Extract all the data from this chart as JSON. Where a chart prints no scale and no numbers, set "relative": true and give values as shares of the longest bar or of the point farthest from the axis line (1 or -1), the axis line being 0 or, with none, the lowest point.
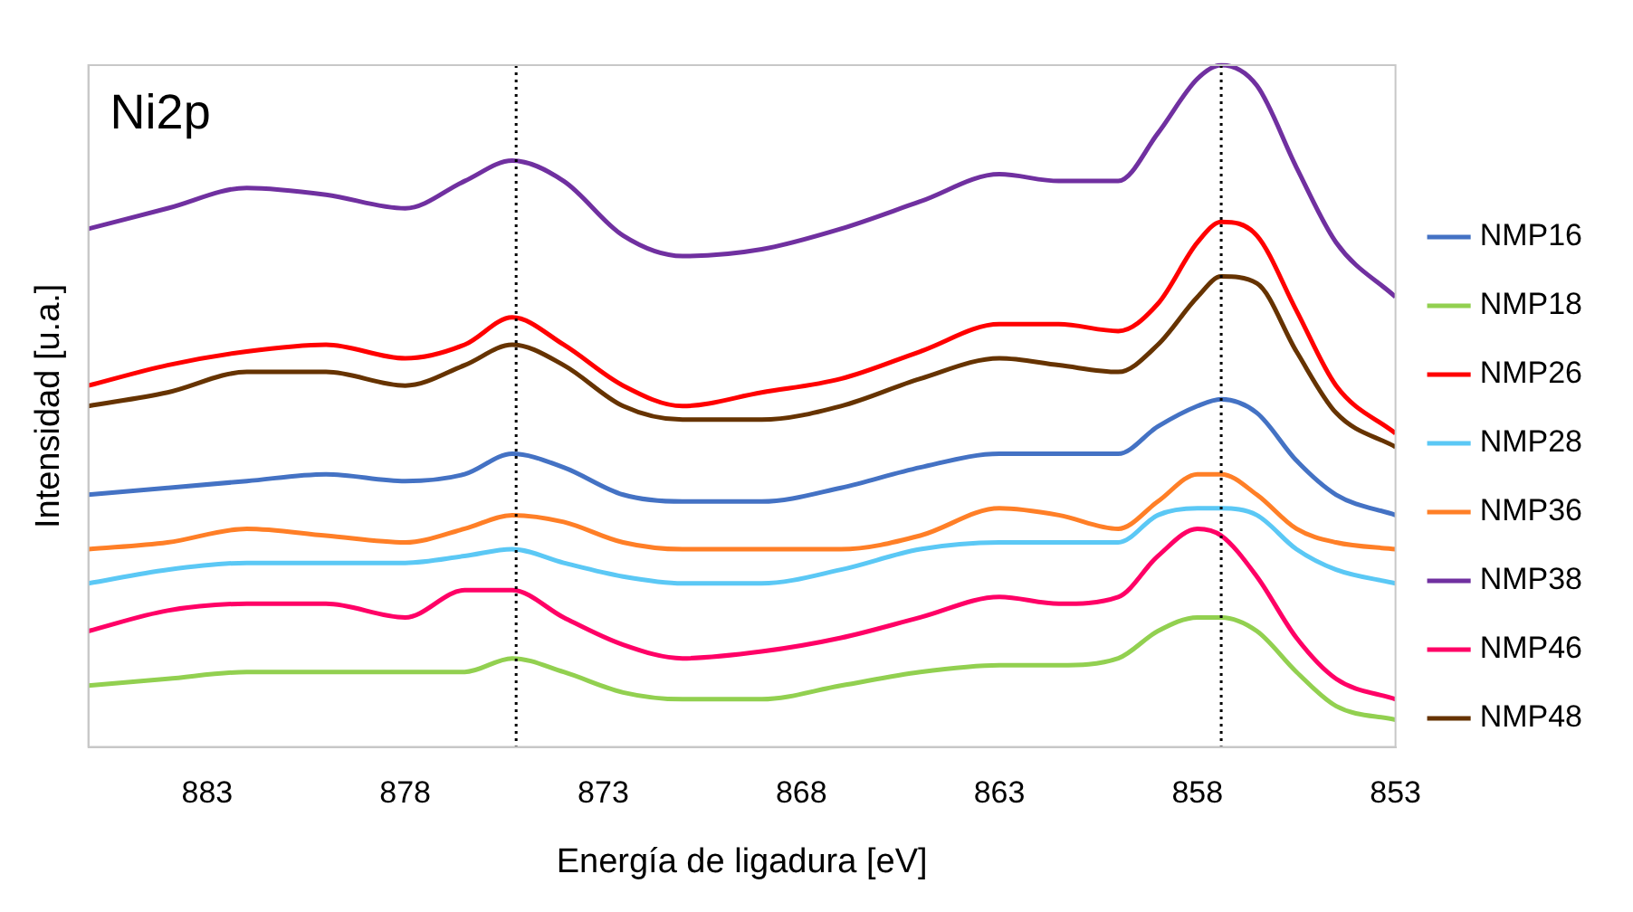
{
  "chart_data": {
    "type": "line",
    "relative": true,
    "xlabel": "Energía de ligadura [eV]",
    "ylabel": "Intensidad [u.a.]",
    "annotations": [
      "Ni2p"
    ],
    "x": [
      886,
      884,
      882,
      880,
      878,
      876.5,
      875.3,
      874,
      872.5,
      871,
      869,
      867,
      865,
      863,
      861.5,
      860,
      859,
      858,
      857.4,
      856.5,
      855.5,
      854.5,
      853
    ],
    "xlim": [
      886,
      853
    ],
    "xticks": [
      883,
      878,
      873,
      868,
      863,
      858,
      853
    ],
    "grid": false,
    "legend": "right",
    "marker": "none",
    "line_style": "solid",
    "ref_lines": [
      {
        "axis": "x",
        "value": 875.2,
        "color": "#000000",
        "line_style": "dotted"
      },
      {
        "axis": "x",
        "value": 857.4,
        "color": "#000000",
        "line_style": "dotted"
      }
    ],
    "series": [
      {
        "name": "NMP16",
        "color": "#4472c4",
        "values": [
          0.37,
          0.38,
          0.39,
          0.4,
          0.39,
          0.4,
          0.43,
          0.41,
          0.37,
          0.36,
          0.36,
          0.38,
          0.41,
          0.43,
          0.43,
          0.43,
          0.47,
          0.5,
          0.51,
          0.49,
          0.42,
          0.37,
          0.34
        ]
      },
      {
        "name": "NMP18",
        "color": "#92d050",
        "values": [
          0.09,
          0.1,
          0.11,
          0.11,
          0.11,
          0.11,
          0.13,
          0.11,
          0.08,
          0.07,
          0.07,
          0.09,
          0.11,
          0.12,
          0.12,
          0.13,
          0.17,
          0.19,
          0.19,
          0.17,
          0.11,
          0.06,
          0.04
        ]
      },
      {
        "name": "NMP26",
        "color": "#ff0000",
        "values": [
          0.53,
          0.56,
          0.58,
          0.59,
          0.57,
          0.59,
          0.63,
          0.59,
          0.53,
          0.5,
          0.52,
          0.54,
          0.58,
          0.62,
          0.62,
          0.61,
          0.65,
          0.74,
          0.77,
          0.75,
          0.64,
          0.53,
          0.46
        ]
      },
      {
        "name": "NMP28",
        "color": "#5bc8f5",
        "values": [
          0.24,
          0.26,
          0.27,
          0.27,
          0.27,
          0.28,
          0.29,
          0.27,
          0.25,
          0.24,
          0.24,
          0.26,
          0.29,
          0.3,
          0.3,
          0.3,
          0.34,
          0.35,
          0.35,
          0.34,
          0.29,
          0.26,
          0.24
        ]
      },
      {
        "name": "NMP36",
        "color": "#ff7f27",
        "values": [
          0.29,
          0.3,
          0.32,
          0.31,
          0.3,
          0.32,
          0.34,
          0.33,
          0.3,
          0.29,
          0.29,
          0.29,
          0.31,
          0.35,
          0.34,
          0.32,
          0.36,
          0.4,
          0.4,
          0.37,
          0.32,
          0.3,
          0.29
        ]
      },
      {
        "name": "NMP38",
        "color": "#7030a0",
        "values": [
          0.76,
          0.79,
          0.82,
          0.81,
          0.79,
          0.83,
          0.86,
          0.83,
          0.75,
          0.72,
          0.73,
          0.76,
          0.8,
          0.84,
          0.83,
          0.83,
          0.9,
          0.98,
          1,
          0.97,
          0.85,
          0.74,
          0.66
        ]
      },
      {
        "name": "NMP46",
        "color": "#ff0066",
        "values": [
          0.17,
          0.2,
          0.21,
          0.21,
          0.19,
          0.23,
          0.23,
          0.19,
          0.15,
          0.13,
          0.14,
          0.16,
          0.19,
          0.22,
          0.21,
          0.22,
          0.28,
          0.32,
          0.31,
          0.25,
          0.16,
          0.1,
          0.07
        ]
      },
      {
        "name": "NMP48",
        "color": "#663300",
        "values": [
          0.5,
          0.52,
          0.55,
          0.55,
          0.53,
          0.56,
          0.59,
          0.56,
          0.5,
          0.48,
          0.48,
          0.5,
          0.54,
          0.57,
          0.56,
          0.55,
          0.59,
          0.66,
          0.69,
          0.68,
          0.58,
          0.49,
          0.44
        ]
      }
    ]
  }
}
